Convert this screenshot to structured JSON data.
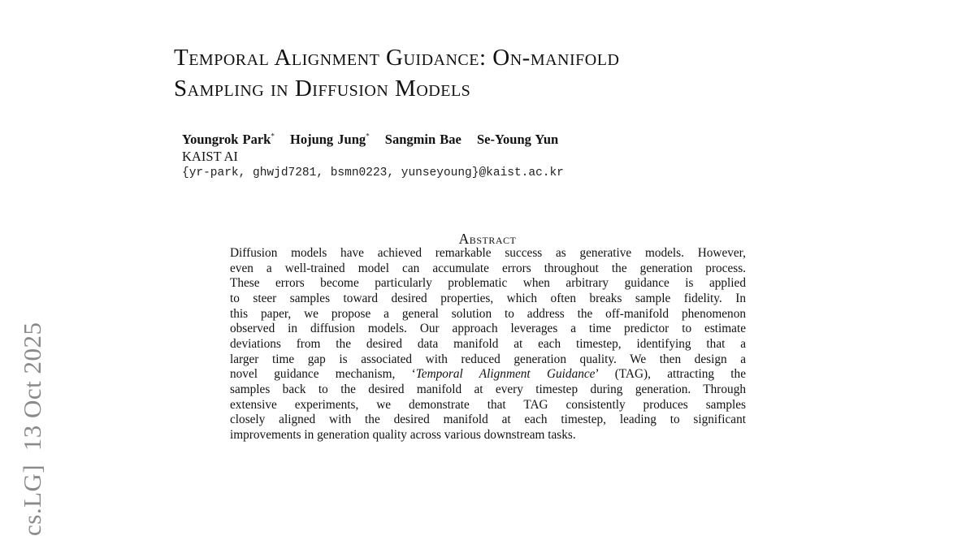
{
  "title": {
    "line1": "Temporal Alignment Guidance: On-manifold",
    "line2": "Sampling in Diffusion Models"
  },
  "authors": [
    {
      "name": "Youngrok Park",
      "mark": "*"
    },
    {
      "name": "Hojung Jung",
      "mark": "*"
    },
    {
      "name": "Sangmin Bae",
      "mark": ""
    },
    {
      "name": "Se-Young Yun",
      "mark": ""
    }
  ],
  "affiliation": "KAIST AI",
  "email": "{yr-park, ghwjd7281, bsmn0223, yunseyoung}@kaist.ac.kr",
  "abstract": {
    "heading": "Abstract",
    "lines": [
      "Diffusion models have achieved remarkable success as generative models. However,",
      "even a well-trained model can accumulate errors throughout the generation process.",
      "These errors become particularly problematic when arbitrary guidance is applied",
      "to steer samples toward desired properties, which often breaks sample fidelity. In",
      "this paper, we propose a general solution to address the off-manifold phenomenon",
      "observed in diffusion models. Our approach leverages a time predictor to estimate",
      "deviations from the desired data manifold at each timestep, identifying that a",
      "larger time gap is associated with reduced generation quality. We then design a"
    ],
    "line9_pre": "novel guidance mechanism, ‘",
    "line9_italic": "Temporal Alignment Guidance",
    "line9_post": "’ (TAG), attracting the",
    "lines_after": [
      "samples back to the desired manifold at every timestep during generation. Through",
      "extensive experiments, we demonstrate that TAG consistently produces samples",
      "closely aligned with the desired manifold at each timestep, leading to significant"
    ],
    "last_line": "improvements in generation quality across various downstream tasks."
  },
  "arxiv_stamp": "cs.LG]  13 Oct 2025"
}
